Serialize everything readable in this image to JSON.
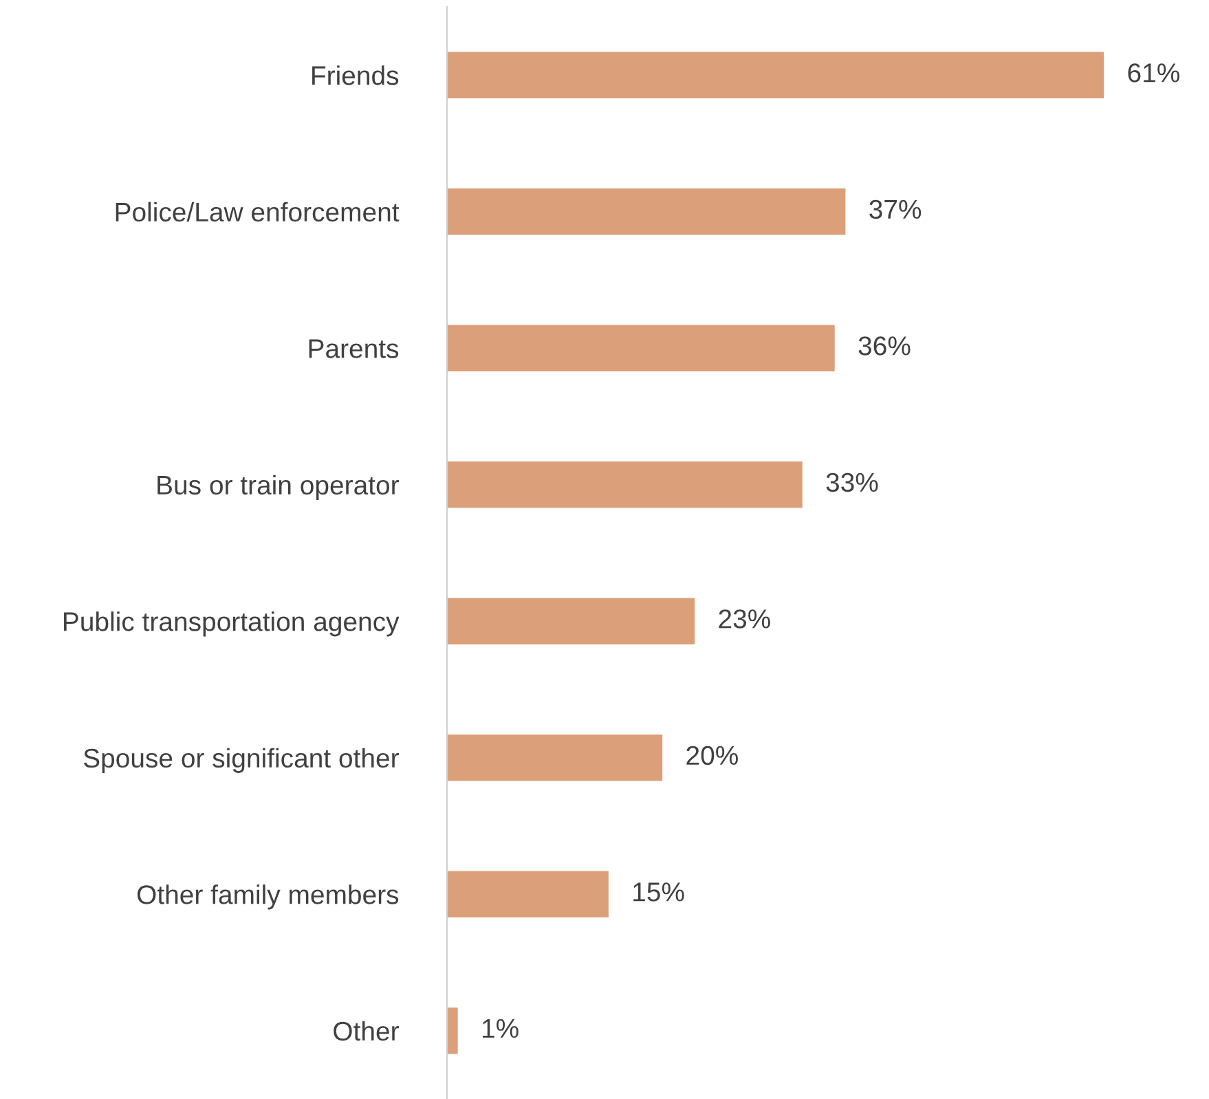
{
  "chart_data": {
    "type": "bar",
    "orientation": "horizontal",
    "categories": [
      "Friends",
      "Police/Law enforcement",
      "Parents",
      "Bus or train operator",
      "Public transportation agency",
      "Spouse or significant other",
      "Other family members",
      "Other"
    ],
    "values": [
      61,
      37,
      36,
      33,
      23,
      20,
      15,
      1
    ],
    "value_labels": [
      "61%",
      "37%",
      "36%",
      "33%",
      "23%",
      "20%",
      "15%",
      "1%"
    ],
    "color": "#dba07a",
    "grid": false,
    "legend": false
  }
}
